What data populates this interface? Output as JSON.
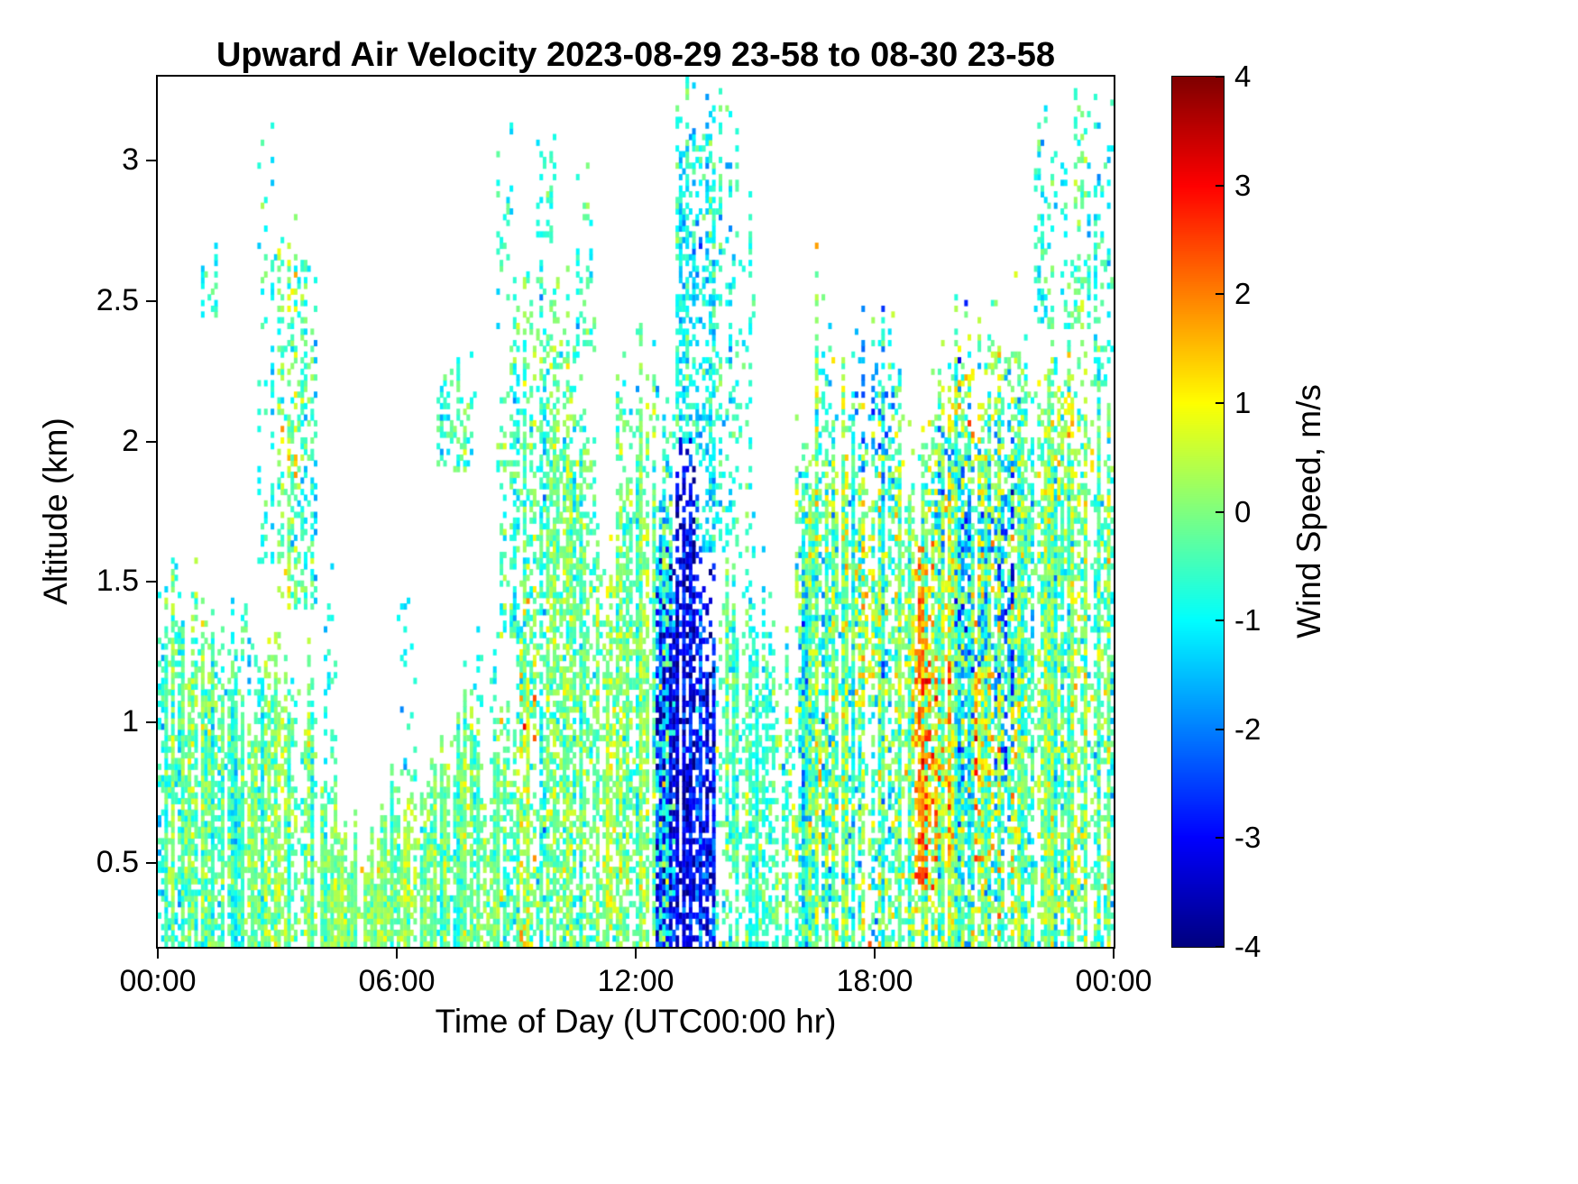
{
  "page": {
    "background": "#ffffff"
  },
  "chart_data": {
    "type": "heatmap",
    "title": "Upward Air Velocity 2023-08-29 23-58 to 08-30 23-58",
    "xlabel": "Time of Day (UTC00:00 hr)",
    "ylabel": "Altitude (km)",
    "colorbar_label": "Wind Speed, m/s",
    "colormap": "jet",
    "no_data_color": "#ffffff",
    "x_range_hours": [
      0,
      24
    ],
    "x_ticks": [
      {
        "hour": 0,
        "label": "00:00"
      },
      {
        "hour": 6,
        "label": "06:00"
      },
      {
        "hour": 12,
        "label": "12:00"
      },
      {
        "hour": 18,
        "label": "18:00"
      },
      {
        "hour": 24,
        "label": "00:00"
      }
    ],
    "y_range_km": [
      0.2,
      3.3
    ],
    "y_ticks": [
      {
        "km": 0.5,
        "label": "0.5"
      },
      {
        "km": 1.0,
        "label": "1"
      },
      {
        "km": 1.5,
        "label": "1.5"
      },
      {
        "km": 2.0,
        "label": "2"
      },
      {
        "km": 2.5,
        "label": "2.5"
      },
      {
        "km": 3.0,
        "label": "3"
      }
    ],
    "colorbar_range": [
      -4,
      4
    ],
    "colorbar_ticks": [
      {
        "v": -4,
        "label": "-4"
      },
      {
        "v": -3,
        "label": "-3"
      },
      {
        "v": -2,
        "label": "-2"
      },
      {
        "v": -1,
        "label": "-1"
      },
      {
        "v": 0,
        "label": "0"
      },
      {
        "v": 1,
        "label": "1"
      },
      {
        "v": 2,
        "label": "2"
      },
      {
        "v": 3,
        "label": "3"
      },
      {
        "v": 4,
        "label": "4"
      }
    ],
    "column_duration_hours": 0.5,
    "segment_format": [
      "alt_min_km",
      "alt_max_km",
      "mean_mps",
      "std_mps",
      "fill_fraction"
    ],
    "columns": [
      [
        [
          0.2,
          1.5,
          -0.3,
          0.5,
          0.9
        ]
      ],
      [
        [
          0.2,
          1.5,
          -0.4,
          0.5,
          0.85
        ]
      ],
      [
        [
          0.2,
          1.4,
          -0.2,
          0.5,
          0.85
        ],
        [
          2.4,
          2.65,
          -0.8,
          0.3,
          0.25
        ]
      ],
      [
        [
          0.2,
          1.3,
          -0.5,
          0.5,
          0.8
        ]
      ],
      [
        [
          0.2,
          1.1,
          -0.2,
          0.4,
          0.8
        ],
        [
          1.1,
          1.5,
          -0.6,
          0.4,
          0.3
        ]
      ],
      [
        [
          0.2,
          1.2,
          -0.3,
          0.5,
          0.8
        ],
        [
          1.5,
          3.25,
          -0.8,
          0.4,
          0.18
        ]
      ],
      [
        [
          0.2,
          1.2,
          0.0,
          0.5,
          0.8
        ],
        [
          1.4,
          2.75,
          -0.2,
          0.7,
          0.45
        ]
      ],
      [
        [
          0.2,
          1.2,
          -0.2,
          0.5,
          0.8
        ],
        [
          1.4,
          2.7,
          -0.6,
          0.5,
          0.35
        ]
      ],
      [
        [
          0.2,
          0.7,
          0.0,
          0.4,
          0.85
        ],
        [
          0.7,
          1.5,
          -0.8,
          0.4,
          0.2
        ]
      ],
      [
        [
          0.2,
          0.55,
          0.1,
          0.35,
          0.9
        ]
      ],
      [
        [
          0.2,
          0.55,
          0.2,
          0.35,
          0.9
        ]
      ],
      [
        [
          0.2,
          0.65,
          0.0,
          0.4,
          0.85
        ]
      ],
      [
        [
          0.2,
          0.75,
          0.0,
          0.4,
          0.85
        ],
        [
          0.8,
          1.55,
          -0.9,
          0.4,
          0.15
        ]
      ],
      [
        [
          0.2,
          0.85,
          -0.1,
          0.4,
          0.85
        ]
      ],
      [
        [
          0.2,
          0.95,
          -0.2,
          0.45,
          0.8
        ],
        [
          1.9,
          2.2,
          -0.4,
          0.4,
          0.3
        ]
      ],
      [
        [
          0.2,
          1.0,
          -0.3,
          0.45,
          0.8
        ],
        [
          1.9,
          2.3,
          -0.3,
          0.4,
          0.5
        ]
      ],
      [
        [
          0.2,
          0.95,
          -0.1,
          0.45,
          0.85
        ],
        [
          1.0,
          1.35,
          -0.7,
          0.4,
          0.2
        ]
      ],
      [
        [
          0.2,
          1.0,
          -0.2,
          0.5,
          0.85
        ],
        [
          1.3,
          2.4,
          -0.5,
          0.5,
          0.35
        ],
        [
          2.4,
          3.1,
          -0.8,
          0.4,
          0.15
        ]
      ],
      [
        [
          0.2,
          1.0,
          0.2,
          0.6,
          0.9
        ],
        [
          0.9,
          1.4,
          0.6,
          0.9,
          0.5
        ],
        [
          1.0,
          2.6,
          -0.4,
          0.5,
          0.55
        ]
      ],
      [
        [
          0.2,
          2.7,
          -0.4,
          0.5,
          0.6
        ],
        [
          2.7,
          3.1,
          -0.8,
          0.3,
          0.2
        ]
      ],
      [
        [
          0.2,
          2.5,
          -0.2,
          0.5,
          0.6
        ]
      ],
      [
        [
          0.2,
          2.3,
          -0.3,
          0.5,
          0.6
        ],
        [
          2.3,
          2.95,
          -0.7,
          0.4,
          0.2
        ]
      ],
      [
        [
          0.2,
          1.6,
          -0.1,
          0.5,
          0.7
        ]
      ],
      [
        [
          0.2,
          2.2,
          -0.2,
          0.5,
          0.6
        ]
      ],
      [
        [
          0.2,
          2.3,
          -0.3,
          0.5,
          0.65
        ]
      ],
      [
        [
          0.2,
          2.3,
          -1.2,
          0.9,
          0.8
        ],
        [
          0.2,
          1.7,
          -3.0,
          0.6,
          0.5
        ]
      ],
      [
        [
          0.2,
          2.0,
          -3.2,
          0.5,
          0.95
        ],
        [
          2.0,
          3.3,
          -0.9,
          0.5,
          0.5
        ]
      ],
      [
        [
          0.2,
          1.6,
          -2.8,
          0.7,
          0.9
        ],
        [
          1.6,
          3.3,
          -1.0,
          0.6,
          0.55
        ]
      ],
      [
        [
          0.2,
          0.5,
          -0.4,
          0.4,
          0.35
        ],
        [
          0.5,
          1.6,
          -0.5,
          0.5,
          0.7
        ],
        [
          1.6,
          3.2,
          -0.9,
          0.5,
          0.3
        ]
      ],
      [
        [
          0.2,
          1.6,
          -0.3,
          0.4,
          0.85
        ],
        [
          1.6,
          2.9,
          -0.7,
          0.4,
          0.2
        ]
      ],
      [
        [
          0.2,
          1.5,
          -0.4,
          0.4,
          0.7
        ]
      ],
      [
        [
          0.2,
          1.3,
          -0.4,
          0.5,
          0.5
        ]
      ],
      [
        [
          0.2,
          2.0,
          -0.5,
          0.7,
          0.75
        ]
      ],
      [
        [
          0.2,
          2.4,
          -0.4,
          0.7,
          0.75
        ],
        [
          0.5,
          1.0,
          0.8,
          0.6,
          0.25
        ]
      ],
      [
        [
          0.2,
          2.2,
          -0.3,
          0.7,
          0.8
        ]
      ],
      [
        [
          0.2,
          2.3,
          -0.2,
          0.8,
          0.8
        ],
        [
          1.0,
          1.8,
          1.0,
          0.6,
          0.2
        ],
        [
          1.9,
          2.4,
          -1.8,
          0.5,
          0.2
        ]
      ],
      [
        [
          0.2,
          2.4,
          -0.3,
          0.8,
          0.8
        ],
        [
          1.9,
          2.4,
          -2.0,
          0.6,
          0.25
        ]
      ],
      [
        [
          0.2,
          2.2,
          0.0,
          0.7,
          0.85
        ],
        [
          0.8,
          1.6,
          0.9,
          0.6,
          0.3
        ]
      ],
      [
        [
          0.2,
          2.2,
          0.3,
          0.7,
          0.9
        ],
        [
          0.4,
          1.6,
          2.0,
          0.6,
          0.6
        ]
      ],
      [
        [
          0.2,
          2.2,
          0.2,
          0.7,
          0.9
        ],
        [
          0.5,
          1.2,
          1.7,
          0.6,
          0.4
        ],
        [
          1.6,
          2.2,
          -1.8,
          0.5,
          0.25
        ]
      ],
      [
        [
          0.2,
          2.4,
          -0.5,
          0.8,
          0.85
        ],
        [
          0.8,
          2.2,
          -2.3,
          0.6,
          0.3
        ],
        [
          2.0,
          2.4,
          0.8,
          0.6,
          0.2
        ]
      ],
      [
        [
          0.2,
          2.4,
          0.0,
          0.8,
          0.85
        ],
        [
          0.5,
          1.5,
          1.4,
          0.6,
          0.3
        ],
        [
          1.2,
          2.0,
          -1.9,
          0.6,
          0.25
        ]
      ],
      [
        [
          0.2,
          2.3,
          -0.2,
          0.8,
          0.85
        ],
        [
          0.8,
          2.0,
          -2.0,
          0.6,
          0.25
        ]
      ],
      [
        [
          0.2,
          2.3,
          -0.3,
          0.7,
          0.85
        ],
        [
          1.6,
          2.0,
          0.7,
          0.5,
          0.2
        ]
      ],
      [
        [
          0.2,
          2.4,
          -0.2,
          0.6,
          0.8
        ],
        [
          2.4,
          3.2,
          -0.6,
          0.5,
          0.25
        ]
      ],
      [
        [
          0.2,
          2.4,
          -0.3,
          0.6,
          0.8
        ],
        [
          1.8,
          2.3,
          0.9,
          0.5,
          0.2
        ],
        [
          2.4,
          3.0,
          -0.7,
          0.4,
          0.2
        ]
      ],
      [
        [
          0.2,
          2.4,
          -0.2,
          0.6,
          0.8
        ],
        [
          2.4,
          3.25,
          -0.5,
          0.5,
          0.3
        ]
      ],
      [
        [
          0.2,
          2.2,
          -0.3,
          0.6,
          0.8
        ],
        [
          2.2,
          3.3,
          -0.8,
          0.4,
          0.3
        ]
      ]
    ]
  }
}
